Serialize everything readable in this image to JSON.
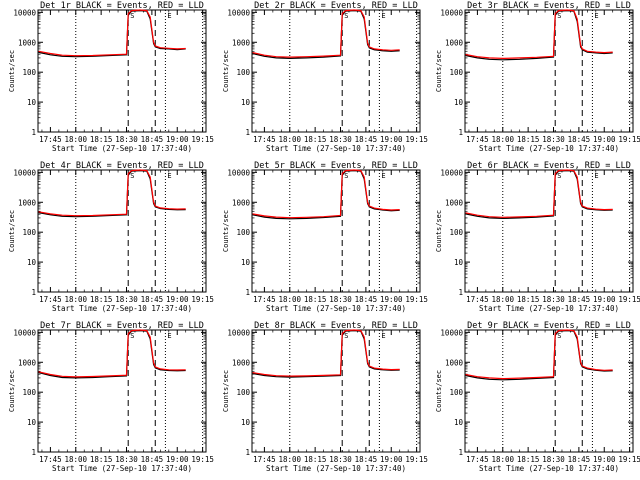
{
  "colors": {
    "events": "#000000",
    "lld": "#ff0000",
    "background": "#ffffff"
  },
  "x_tick_labels": [
    "17:45",
    "18:00",
    "18:15",
    "18:30",
    "18:45",
    "19:00",
    "19:15"
  ],
  "y_tick_labels": [
    "1",
    "10",
    "100",
    "1000",
    "10000"
  ],
  "xlabel": "Start Time (27-Sep-10 17:37:40)",
  "ylabel": "Counts/sec",
  "marker_labels": [
    "S",
    "E"
  ],
  "chart_data": [
    {
      "type": "line",
      "title": "Det 1r BLACK = Events, RED = LLD",
      "xlabel": "Start Time (27-Sep-10 17:37:40)",
      "ylabel": "Counts/sec",
      "xlim": [
        "17:37:40",
        "19:17"
      ],
      "ylim": [
        1,
        12000
      ],
      "yscale": "log",
      "vertical_lines": {
        "dotted": [
          "18:00",
          "18:53",
          "19:15"
        ],
        "dashed": [
          "18:31",
          "18:47"
        ]
      },
      "marker_labels": [
        "S",
        "E"
      ],
      "x": [
        "17:38",
        "17:45",
        "17:52",
        "18:00",
        "18:10",
        "18:20",
        "18:30",
        "18:31",
        "18:33",
        "18:38",
        "18:42",
        "18:44",
        "18:46",
        "18:47",
        "18:50",
        "18:55",
        "19:00",
        "19:05"
      ],
      "series": [
        {
          "name": "Events",
          "values": [
            460,
            380,
            340,
            330,
            340,
            360,
            380,
            8000,
            11000,
            11500,
            11000,
            6000,
            900,
            700,
            620,
            600,
            570,
            600
          ]
        },
        {
          "name": "LLD",
          "values": [
            500,
            420,
            370,
            355,
            360,
            380,
            400,
            9000,
            11500,
            12000,
            11500,
            7000,
            1000,
            750,
            660,
            630,
            600,
            620
          ]
        }
      ]
    },
    {
      "type": "line",
      "title": "Det 2r BLACK = Events, RED = LLD",
      "xlabel": "Start Time (27-Sep-10 17:37:40)",
      "ylabel": "Counts/sec",
      "xlim": [
        "17:37:40",
        "19:17"
      ],
      "ylim": [
        1,
        12000
      ],
      "yscale": "log",
      "vertical_lines": {
        "dotted": [
          "18:00",
          "18:53",
          "19:15"
        ],
        "dashed": [
          "18:31",
          "18:47"
        ]
      },
      "marker_labels": [
        "S",
        "E"
      ],
      "x": [
        "17:38",
        "17:45",
        "17:52",
        "18:00",
        "18:10",
        "18:20",
        "18:30",
        "18:31",
        "18:33",
        "18:38",
        "18:42",
        "18:44",
        "18:46",
        "18:47",
        "18:50",
        "18:55",
        "19:00",
        "19:05"
      ],
      "series": [
        {
          "name": "Events",
          "values": [
            420,
            340,
            300,
            290,
            300,
            320,
            350,
            8000,
            11000,
            11500,
            11000,
            6000,
            850,
            650,
            560,
            520,
            500,
            520
          ]
        },
        {
          "name": "LLD",
          "values": [
            450,
            370,
            330,
            320,
            330,
            345,
            370,
            9000,
            11500,
            12000,
            11500,
            7000,
            950,
            700,
            600,
            560,
            540,
            560
          ]
        }
      ]
    },
    {
      "type": "line",
      "title": "Det 3r BLACK = Events, RED = LLD",
      "xlabel": "Start Time (27-Sep-10 17:37:40)",
      "ylabel": "Counts/sec",
      "xlim": [
        "17:37:40",
        "19:17"
      ],
      "ylim": [
        1,
        12000
      ],
      "yscale": "log",
      "vertical_lines": {
        "dotted": [
          "18:00",
          "18:53",
          "19:15"
        ],
        "dashed": [
          "18:31",
          "18:47"
        ]
      },
      "marker_labels": [
        "S",
        "E"
      ],
      "x": [
        "17:38",
        "17:45",
        "17:52",
        "18:00",
        "18:10",
        "18:20",
        "18:30",
        "18:31",
        "18:33",
        "18:38",
        "18:42",
        "18:44",
        "18:46",
        "18:47",
        "18:50",
        "18:55",
        "19:00",
        "19:05"
      ],
      "series": [
        {
          "name": "Events",
          "values": [
            360,
            300,
            270,
            260,
            270,
            290,
            320,
            8000,
            11000,
            11500,
            11000,
            5000,
            700,
            560,
            470,
            440,
            420,
            440
          ]
        },
        {
          "name": "LLD",
          "values": [
            390,
            330,
            300,
            290,
            300,
            315,
            340,
            9000,
            11500,
            12000,
            11500,
            6000,
            800,
            600,
            500,
            470,
            450,
            470
          ]
        }
      ]
    },
    {
      "type": "line",
      "title": "Det 4r BLACK = Events, RED = LLD",
      "xlabel": "Start Time (27-Sep-10 17:37:40)",
      "ylabel": "Counts/sec",
      "xlim": [
        "17:37:40",
        "19:17"
      ],
      "ylim": [
        1,
        12000
      ],
      "yscale": "log",
      "vertical_lines": {
        "dotted": [
          "18:00",
          "18:53",
          "19:15"
        ],
        "dashed": [
          "18:31",
          "18:47"
        ]
      },
      "marker_labels": [
        "S",
        "E"
      ],
      "x": [
        "17:38",
        "17:45",
        "17:52",
        "18:00",
        "18:10",
        "18:20",
        "18:30",
        "18:31",
        "18:33",
        "18:38",
        "18:42",
        "18:44",
        "18:46",
        "18:47",
        "18:50",
        "18:55",
        "19:00",
        "19:05"
      ],
      "series": [
        {
          "name": "Events",
          "values": [
            450,
            380,
            340,
            330,
            340,
            360,
            380,
            8000,
            11000,
            11500,
            11000,
            6000,
            900,
            700,
            620,
            580,
            560,
            570
          ]
        },
        {
          "name": "LLD",
          "values": [
            480,
            410,
            370,
            355,
            360,
            380,
            400,
            9000,
            11500,
            12000,
            11500,
            7000,
            1000,
            750,
            650,
            610,
            590,
            600
          ]
        }
      ]
    },
    {
      "type": "line",
      "title": "Det 5r BLACK = Events, RED = LLD",
      "xlabel": "Start Time (27-Sep-10 17:37:40)",
      "ylabel": "Counts/sec",
      "xlim": [
        "17:37:40",
        "19:17"
      ],
      "ylim": [
        1,
        12000
      ],
      "yscale": "log",
      "vertical_lines": {
        "dotted": [
          "18:00",
          "18:53",
          "19:15"
        ],
        "dashed": [
          "18:31",
          "18:47"
        ]
      },
      "marker_labels": [
        "S",
        "E"
      ],
      "x": [
        "17:38",
        "17:45",
        "17:52",
        "18:00",
        "18:10",
        "18:20",
        "18:30",
        "18:31",
        "18:33",
        "18:38",
        "18:42",
        "18:44",
        "18:46",
        "18:47",
        "18:50",
        "18:55",
        "19:00",
        "19:05"
      ],
      "series": [
        {
          "name": "Events",
          "values": [
            380,
            320,
            290,
            280,
            290,
            310,
            340,
            8000,
            11000,
            11500,
            11000,
            6000,
            900,
            700,
            600,
            550,
            520,
            540
          ]
        },
        {
          "name": "LLD",
          "values": [
            410,
            350,
            320,
            305,
            315,
            330,
            360,
            9000,
            11500,
            12000,
            11500,
            7000,
            1000,
            750,
            640,
            580,
            550,
            570
          ]
        }
      ]
    },
    {
      "type": "line",
      "title": "Det 6r BLACK = Events, RED = LLD",
      "xlabel": "Start Time (27-Sep-10 17:37:40)",
      "ylabel": "Counts/sec",
      "xlim": [
        "17:37:40",
        "19:17"
      ],
      "ylim": [
        1,
        12000
      ],
      "yscale": "log",
      "vertical_lines": {
        "dotted": [
          "18:00",
          "18:53",
          "19:15"
        ],
        "dashed": [
          "18:31",
          "18:47"
        ]
      },
      "marker_labels": [
        "S",
        "E"
      ],
      "x": [
        "17:38",
        "17:45",
        "17:52",
        "18:00",
        "18:10",
        "18:20",
        "18:30",
        "18:31",
        "18:33",
        "18:38",
        "18:42",
        "18:44",
        "18:46",
        "18:47",
        "18:50",
        "18:55",
        "19:00",
        "19:05"
      ],
      "series": [
        {
          "name": "Events",
          "values": [
            410,
            340,
            300,
            290,
            300,
            320,
            350,
            8000,
            11000,
            11500,
            11000,
            6000,
            900,
            700,
            600,
            560,
            540,
            550
          ]
        },
        {
          "name": "LLD",
          "values": [
            440,
            370,
            330,
            315,
            325,
            340,
            370,
            9000,
            11500,
            12000,
            11500,
            7000,
            1000,
            750,
            640,
            590,
            570,
            580
          ]
        }
      ]
    },
    {
      "type": "line",
      "title": "Det 7r BLACK = Events, RED = LLD",
      "xlabel": "Start Time (27-Sep-10 17:37:40)",
      "ylabel": "Counts/sec",
      "xlim": [
        "17:37:40",
        "19:17"
      ],
      "ylim": [
        1,
        12000
      ],
      "yscale": "log",
      "vertical_lines": {
        "dotted": [
          "18:00",
          "18:53",
          "19:15"
        ],
        "dashed": [
          "18:31",
          "18:47"
        ]
      },
      "marker_labels": [
        "S",
        "E"
      ],
      "x": [
        "17:38",
        "17:45",
        "17:52",
        "18:00",
        "18:10",
        "18:20",
        "18:30",
        "18:31",
        "18:33",
        "18:38",
        "18:42",
        "18:44",
        "18:46",
        "18:47",
        "18:50",
        "18:55",
        "19:00",
        "19:05"
      ],
      "series": [
        {
          "name": "Events",
          "values": [
            450,
            360,
            310,
            300,
            310,
            330,
            350,
            8000,
            11000,
            11500,
            11000,
            6000,
            850,
            650,
            560,
            530,
            520,
            530
          ]
        },
        {
          "name": "LLD",
          "values": [
            480,
            390,
            340,
            325,
            335,
            350,
            370,
            9000,
            11500,
            12000,
            11500,
            7000,
            950,
            700,
            600,
            560,
            550,
            560
          ]
        }
      ]
    },
    {
      "type": "line",
      "title": "Det 8r BLACK = Events, RED = LLD",
      "xlabel": "Start Time (27-Sep-10 17:37:40)",
      "ylabel": "Counts/sec",
      "xlim": [
        "17:37:40",
        "19:17"
      ],
      "ylim": [
        1,
        12000
      ],
      "yscale": "log",
      "vertical_lines": {
        "dotted": [
          "18:00",
          "18:53",
          "19:15"
        ],
        "dashed": [
          "18:31",
          "18:47"
        ]
      },
      "marker_labels": [
        "S",
        "E"
      ],
      "x": [
        "17:38",
        "17:45",
        "17:52",
        "18:00",
        "18:10",
        "18:20",
        "18:30",
        "18:31",
        "18:33",
        "18:38",
        "18:42",
        "18:44",
        "18:46",
        "18:47",
        "18:50",
        "18:55",
        "19:00",
        "19:05"
      ],
      "series": [
        {
          "name": "Events",
          "values": [
            420,
            360,
            330,
            320,
            330,
            345,
            360,
            8000,
            11000,
            11500,
            11000,
            6000,
            900,
            700,
            600,
            560,
            540,
            550
          ]
        },
        {
          "name": "LLD",
          "values": [
            450,
            390,
            355,
            345,
            350,
            365,
            380,
            9000,
            11500,
            12000,
            11500,
            7000,
            1000,
            750,
            640,
            590,
            570,
            580
          ]
        }
      ]
    },
    {
      "type": "line",
      "title": "Det 9r BLACK = Events, RED = LLD",
      "xlabel": "Start Time (27-Sep-10 17:37:40)",
      "ylabel": "Counts/sec",
      "xlim": [
        "17:37:40",
        "19:17"
      ],
      "ylim": [
        1,
        12000
      ],
      "yscale": "log",
      "vertical_lines": {
        "dotted": [
          "18:00",
          "18:53",
          "19:15"
        ],
        "dashed": [
          "18:31",
          "18:47"
        ]
      },
      "marker_labels": [
        "S",
        "E"
      ],
      "x": [
        "17:38",
        "17:45",
        "17:52",
        "18:00",
        "18:10",
        "18:20",
        "18:30",
        "18:31",
        "18:33",
        "18:38",
        "18:42",
        "18:44",
        "18:46",
        "18:47",
        "18:50",
        "18:55",
        "19:00",
        "19:05"
      ],
      "series": [
        {
          "name": "Events",
          "values": [
            360,
            300,
            270,
            260,
            270,
            290,
            310,
            8000,
            11000,
            11500,
            11000,
            6000,
            900,
            700,
            600,
            540,
            510,
            520
          ]
        },
        {
          "name": "LLD",
          "values": [
            390,
            330,
            300,
            285,
            295,
            310,
            330,
            9000,
            11500,
            12000,
            11500,
            7000,
            1000,
            750,
            640,
            570,
            540,
            550
          ]
        }
      ]
    }
  ]
}
